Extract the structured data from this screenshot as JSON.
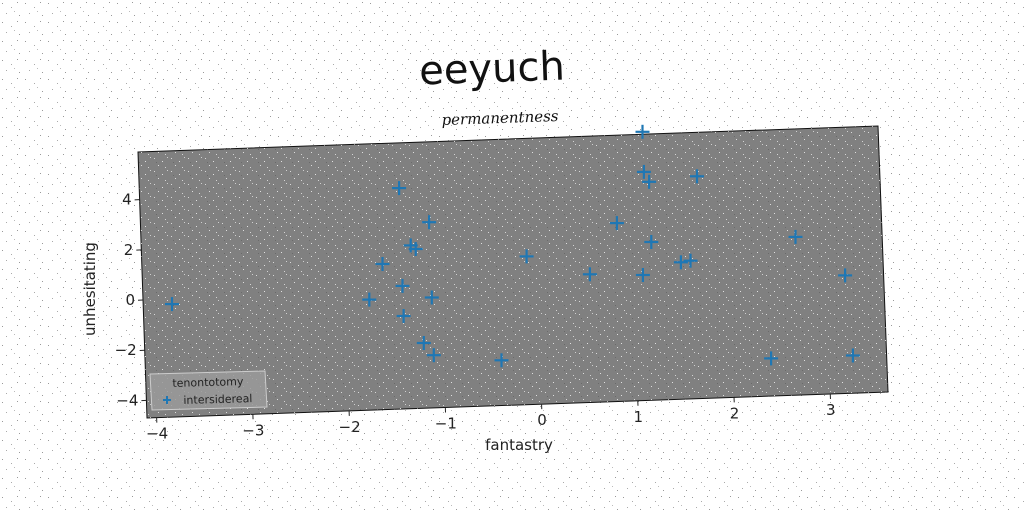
{
  "chart_data": {
    "type": "scatter",
    "title": "eeyuch",
    "subtitle": "permanentness",
    "xlabel": "fantastry",
    "ylabel": "unhesitating",
    "xlim": [
      -4.1,
      3.6
    ],
    "ylim": [
      -4.7,
      5.9
    ],
    "xticks": [
      -4,
      -3,
      -2,
      -1,
      0,
      1,
      2,
      3
    ],
    "yticks": [
      -4,
      -2,
      0,
      2,
      4
    ],
    "xtick_labels": [
      "−4",
      "−3",
      "−2",
      "−1",
      "0",
      "1",
      "2",
      "3"
    ],
    "ytick_labels": [
      "−4",
      "−2",
      "0",
      "2",
      "4"
    ],
    "grid": false,
    "legend": {
      "placement": "lower-left",
      "title": "tenontotomy",
      "entries": [
        "intersidereal"
      ]
    },
    "background": "#808080",
    "series": [
      {
        "name": "intersidereal",
        "marker": "plus",
        "color": "#1f77b4",
        "points": [
          {
            "x": -3.8,
            "y": -0.2
          },
          {
            "x": -1.4,
            "y": 4.1
          },
          {
            "x": -1.1,
            "y": 2.7
          },
          {
            "x": -1.3,
            "y": 1.8
          },
          {
            "x": -1.25,
            "y": 1.65
          },
          {
            "x": -1.6,
            "y": 1.1
          },
          {
            "x": -1.75,
            "y": -0.3
          },
          {
            "x": -1.4,
            "y": 0.2
          },
          {
            "x": -1.1,
            "y": -0.3
          },
          {
            "x": -1.4,
            "y": -1.0
          },
          {
            "x": -1.2,
            "y": -2.1
          },
          {
            "x": -1.1,
            "y": -2.6
          },
          {
            "x": -0.4,
            "y": -2.9
          },
          {
            "x": -0.1,
            "y": 1.2
          },
          {
            "x": 0.55,
            "y": 0.4
          },
          {
            "x": 0.85,
            "y": 2.4
          },
          {
            "x": 1.15,
            "y": 6.0
          },
          {
            "x": 1.15,
            "y": 4.4
          },
          {
            "x": 1.2,
            "y": 4.0
          },
          {
            "x": 1.2,
            "y": 1.6
          },
          {
            "x": 1.1,
            "y": 0.3
          },
          {
            "x": 1.5,
            "y": 0.75
          },
          {
            "x": 1.6,
            "y": 0.8
          },
          {
            "x": 1.7,
            "y": 4.15
          },
          {
            "x": 2.7,
            "y": 1.6
          },
          {
            "x": 3.2,
            "y": 0.0
          },
          {
            "x": 2.4,
            "y": -3.2
          },
          {
            "x": 3.25,
            "y": -3.2
          }
        ]
      }
    ]
  }
}
